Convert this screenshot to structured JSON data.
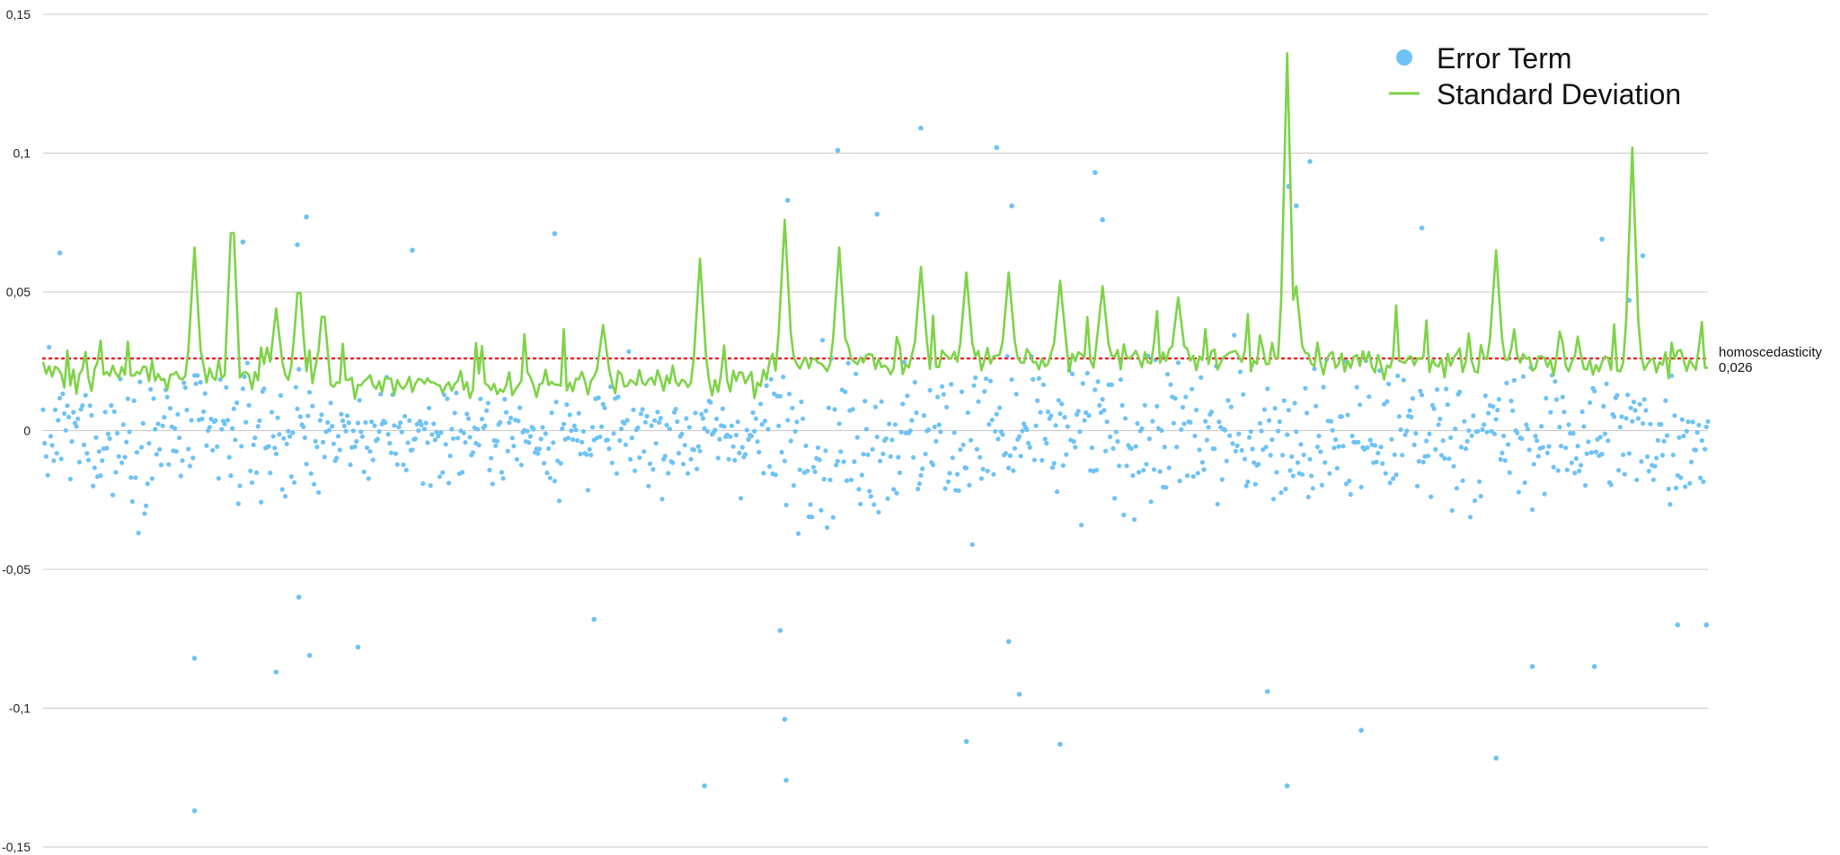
{
  "chart_data": {
    "type": "scatter",
    "ylim": [
      -0.15,
      0.15
    ],
    "y_ticks": [
      {
        "value": 0.15,
        "label": "0,15"
      },
      {
        "value": 0.1,
        "label": "0,1"
      },
      {
        "value": 0.05,
        "label": "0,05"
      },
      {
        "value": 0,
        "label": "0"
      },
      {
        "value": -0.05,
        "label": "-0,05"
      },
      {
        "value": -0.1,
        "label": "-0,1"
      },
      {
        "value": -0.15,
        "label": "-0,15"
      }
    ],
    "x_range": [
      0,
      1100
    ],
    "grid": true,
    "legend_position": "top-right",
    "colors": {
      "error_term": "#6ec2f5",
      "std_dev": "#7ed348",
      "reference": "#e8262a",
      "grid": "#c8c8c8"
    },
    "series": [
      {
        "name": "Error Term",
        "kind": "scatter"
      },
      {
        "name": "Standard Deviation",
        "kind": "line"
      }
    ],
    "reference_line": {
      "value": 0.026,
      "label_line1": "homoscedasticity",
      "label_line2": "0,026"
    },
    "error_term_outliers": [
      {
        "x": 100,
        "y": -0.137
      },
      {
        "x": 100,
        "y": -0.082
      },
      {
        "x": 11,
        "y": 0.064
      },
      {
        "x": 132,
        "y": 0.068
      },
      {
        "x": 168,
        "y": 0.067
      },
      {
        "x": 174,
        "y": 0.077
      },
      {
        "x": 154,
        "y": -0.087
      },
      {
        "x": 169,
        "y": -0.06
      },
      {
        "x": 176,
        "y": -0.081
      },
      {
        "x": 208,
        "y": -0.078
      },
      {
        "x": 244,
        "y": 0.065
      },
      {
        "x": 338,
        "y": 0.071
      },
      {
        "x": 364,
        "y": -0.068
      },
      {
        "x": 437,
        "y": -0.128
      },
      {
        "x": 487,
        "y": -0.072
      },
      {
        "x": 490,
        "y": -0.104
      },
      {
        "x": 491,
        "y": -0.126
      },
      {
        "x": 492,
        "y": 0.083
      },
      {
        "x": 525,
        "y": 0.101
      },
      {
        "x": 551,
        "y": 0.078
      },
      {
        "x": 580,
        "y": 0.109
      },
      {
        "x": 610,
        "y": -0.112
      },
      {
        "x": 630,
        "y": 0.102
      },
      {
        "x": 638,
        "y": -0.076
      },
      {
        "x": 640,
        "y": 0.081
      },
      {
        "x": 645,
        "y": -0.095
      },
      {
        "x": 672,
        "y": -0.113
      },
      {
        "x": 695,
        "y": 0.093
      },
      {
        "x": 700,
        "y": 0.076
      },
      {
        "x": 809,
        "y": -0.094
      },
      {
        "x": 822,
        "y": -0.128
      },
      {
        "x": 823,
        "y": 0.088
      },
      {
        "x": 828,
        "y": 0.081
      },
      {
        "x": 837,
        "y": 0.097
      },
      {
        "x": 871,
        "y": -0.108
      },
      {
        "x": 911,
        "y": 0.073
      },
      {
        "x": 960,
        "y": -0.118
      },
      {
        "x": 984,
        "y": -0.085
      },
      {
        "x": 1025,
        "y": -0.085
      },
      {
        "x": 1030,
        "y": 0.069
      },
      {
        "x": 1048,
        "y": 0.047
      },
      {
        "x": 1057,
        "y": 0.063
      },
      {
        "x": 1080,
        "y": -0.07
      },
      {
        "x": 1099,
        "y": -0.07
      }
    ],
    "std_dev_peaks": [
      {
        "x": 100,
        "y": 0.066
      },
      {
        "x": 125,
        "y": 0.084
      },
      {
        "x": 154,
        "y": 0.044
      },
      {
        "x": 169,
        "y": 0.057
      },
      {
        "x": 185,
        "y": 0.047
      },
      {
        "x": 370,
        "y": 0.038
      },
      {
        "x": 434,
        "y": 0.062
      },
      {
        "x": 490,
        "y": 0.076
      },
      {
        "x": 526,
        "y": 0.066
      },
      {
        "x": 580,
        "y": 0.059
      },
      {
        "x": 610,
        "y": 0.057
      },
      {
        "x": 638,
        "y": 0.057
      },
      {
        "x": 672,
        "y": 0.054
      },
      {
        "x": 700,
        "y": 0.052
      },
      {
        "x": 750,
        "y": 0.048
      },
      {
        "x": 822,
        "y": 0.136
      },
      {
        "x": 828,
        "y": 0.052
      },
      {
        "x": 960,
        "y": 0.065
      },
      {
        "x": 1050,
        "y": 0.102
      }
    ]
  },
  "legend": {
    "items": [
      {
        "label": "Error Term"
      },
      {
        "label": "Standard Deviation"
      }
    ]
  }
}
